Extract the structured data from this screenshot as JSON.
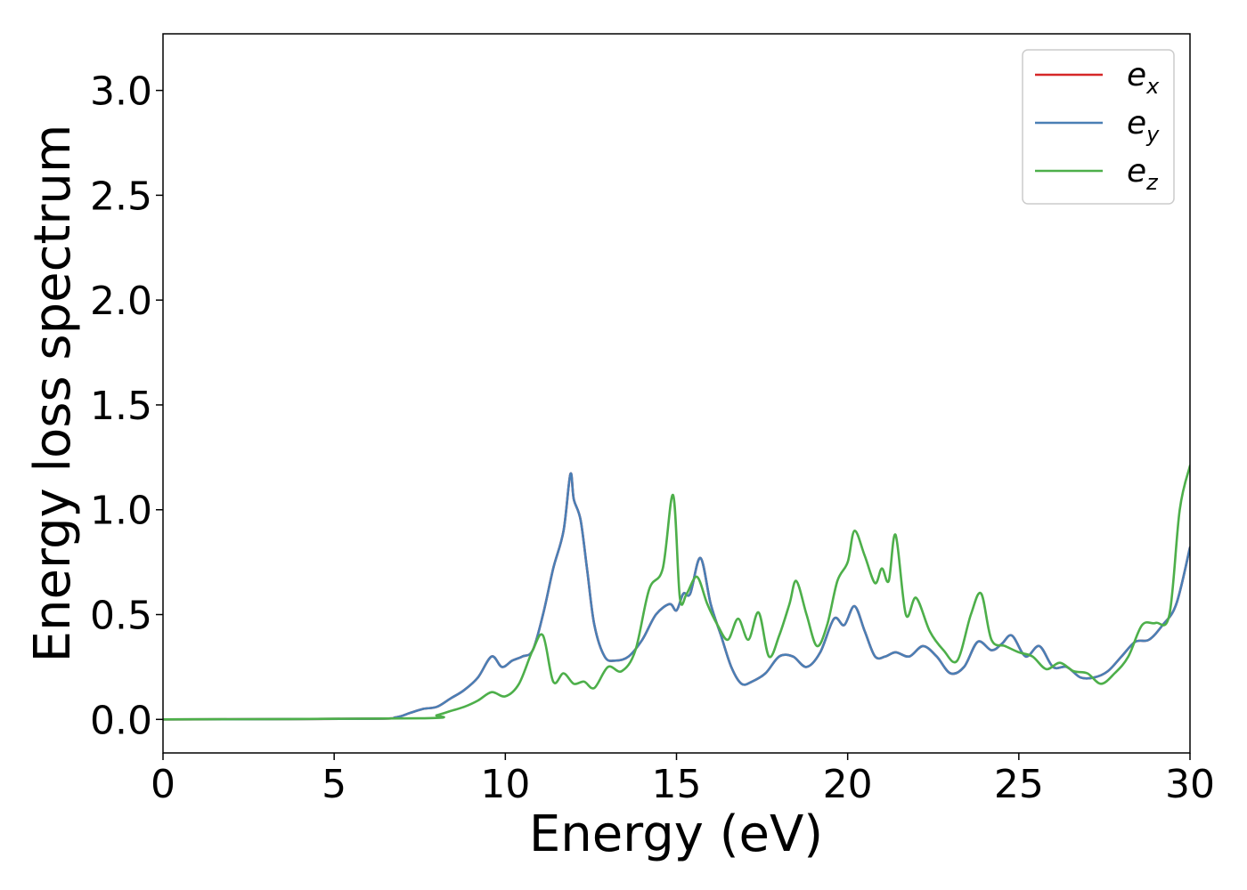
{
  "chart_data": {
    "type": "line",
    "xlabel": "Energy (eV)",
    "ylabel": "Energy loss spectrum",
    "xlim": [
      0,
      30
    ],
    "ylim": [
      -0.16,
      3.27
    ],
    "xticks": [
      "0",
      "5",
      "10",
      "15",
      "20",
      "25",
      "30"
    ],
    "yticks": [
      "0.0",
      "0.5",
      "1.0",
      "1.5",
      "2.0",
      "2.5",
      "3.0"
    ],
    "grid": false,
    "legend_position": "top-right",
    "series": [
      {
        "name": "e_x",
        "label_base": "e",
        "label_sub": "x",
        "color": "#d62728",
        "x": [
          0,
          6,
          6.8,
          7.2,
          7.6,
          8.0,
          8.4,
          8.8,
          9.2,
          9.6,
          9.9,
          10.2,
          10.5,
          10.8,
          11.1,
          11.4,
          11.7,
          11.9,
          12.0,
          12.2,
          12.4,
          12.6,
          12.9,
          13.2,
          13.6,
          14.0,
          14.4,
          14.8,
          15.0,
          15.2,
          15.4,
          15.7,
          16.0,
          16.3,
          16.6,
          16.9,
          17.2,
          17.6,
          18.0,
          18.4,
          18.8,
          19.2,
          19.6,
          19.9,
          20.2,
          20.5,
          20.8,
          21.1,
          21.4,
          21.8,
          22.2,
          22.6,
          23.0,
          23.4,
          23.8,
          24.2,
          24.5,
          24.8,
          25.2,
          25.6,
          26.0,
          26.4,
          26.8,
          27.2,
          27.6,
          28.0,
          28.4,
          28.8,
          29.2,
          29.6,
          30.0
        ],
        "values": [
          0,
          0.003,
          0.01,
          0.03,
          0.05,
          0.06,
          0.1,
          0.14,
          0.2,
          0.3,
          0.25,
          0.28,
          0.3,
          0.33,
          0.5,
          0.72,
          0.9,
          1.17,
          1.05,
          0.95,
          0.7,
          0.45,
          0.3,
          0.28,
          0.3,
          0.38,
          0.5,
          0.55,
          0.52,
          0.6,
          0.6,
          0.77,
          0.55,
          0.4,
          0.25,
          0.17,
          0.18,
          0.22,
          0.3,
          0.3,
          0.25,
          0.32,
          0.48,
          0.45,
          0.54,
          0.42,
          0.3,
          0.3,
          0.32,
          0.3,
          0.35,
          0.3,
          0.22,
          0.25,
          0.37,
          0.33,
          0.36,
          0.4,
          0.3,
          0.35,
          0.25,
          0.25,
          0.2,
          0.2,
          0.23,
          0.3,
          0.37,
          0.38,
          0.45,
          0.55,
          0.82
        ]
      },
      {
        "name": "e_y",
        "label_base": "e",
        "label_sub": "y",
        "color": "#4a7fb5",
        "x": [
          0,
          6,
          6.8,
          7.2,
          7.6,
          8.0,
          8.4,
          8.8,
          9.2,
          9.6,
          9.9,
          10.2,
          10.5,
          10.8,
          11.1,
          11.4,
          11.7,
          11.9,
          12.0,
          12.2,
          12.4,
          12.6,
          12.9,
          13.2,
          13.6,
          14.0,
          14.4,
          14.8,
          15.0,
          15.2,
          15.4,
          15.7,
          16.0,
          16.3,
          16.6,
          16.9,
          17.2,
          17.6,
          18.0,
          18.4,
          18.8,
          19.2,
          19.6,
          19.9,
          20.2,
          20.5,
          20.8,
          21.1,
          21.4,
          21.8,
          22.2,
          22.6,
          23.0,
          23.4,
          23.8,
          24.2,
          24.5,
          24.8,
          25.2,
          25.6,
          26.0,
          26.4,
          26.8,
          27.2,
          27.6,
          28.0,
          28.4,
          28.8,
          29.2,
          29.6,
          30.0
        ],
        "values": [
          0,
          0.003,
          0.01,
          0.03,
          0.05,
          0.06,
          0.1,
          0.14,
          0.2,
          0.3,
          0.25,
          0.28,
          0.3,
          0.33,
          0.5,
          0.72,
          0.9,
          1.17,
          1.05,
          0.95,
          0.7,
          0.45,
          0.3,
          0.28,
          0.3,
          0.38,
          0.5,
          0.55,
          0.52,
          0.6,
          0.6,
          0.77,
          0.55,
          0.4,
          0.25,
          0.17,
          0.18,
          0.22,
          0.3,
          0.3,
          0.25,
          0.32,
          0.48,
          0.45,
          0.54,
          0.42,
          0.3,
          0.3,
          0.32,
          0.3,
          0.35,
          0.3,
          0.22,
          0.25,
          0.37,
          0.33,
          0.36,
          0.4,
          0.3,
          0.35,
          0.25,
          0.25,
          0.2,
          0.2,
          0.23,
          0.3,
          0.37,
          0.38,
          0.45,
          0.55,
          0.82
        ]
      },
      {
        "name": "e_z",
        "label_base": "e",
        "label_sub": "z",
        "color": "#4daf4a",
        "x": [
          0,
          7.5,
          8.0,
          8.4,
          8.8,
          9.2,
          9.6,
          10.0,
          10.4,
          10.8,
          11.1,
          11.4,
          11.7,
          12.0,
          12.3,
          12.6,
          13.0,
          13.4,
          13.8,
          14.2,
          14.6,
          14.9,
          15.1,
          15.3,
          15.6,
          15.9,
          16.2,
          16.5,
          16.8,
          17.1,
          17.4,
          17.7,
          18.0,
          18.3,
          18.5,
          18.8,
          19.1,
          19.4,
          19.7,
          20.0,
          20.2,
          20.5,
          20.8,
          21.0,
          21.2,
          21.4,
          21.7,
          22.0,
          22.4,
          22.8,
          23.2,
          23.6,
          23.9,
          24.2,
          24.6,
          25.0,
          25.4,
          25.8,
          26.2,
          26.6,
          27.0,
          27.4,
          27.8,
          28.2,
          28.6,
          29.0,
          29.4,
          29.7,
          30.0
        ],
        "values": [
          0,
          0.005,
          0.02,
          0.04,
          0.06,
          0.09,
          0.13,
          0.11,
          0.17,
          0.33,
          0.4,
          0.18,
          0.22,
          0.17,
          0.18,
          0.15,
          0.25,
          0.23,
          0.33,
          0.62,
          0.72,
          1.07,
          0.58,
          0.6,
          0.68,
          0.55,
          0.45,
          0.38,
          0.48,
          0.38,
          0.51,
          0.3,
          0.4,
          0.55,
          0.66,
          0.5,
          0.35,
          0.45,
          0.66,
          0.75,
          0.9,
          0.78,
          0.65,
          0.72,
          0.66,
          0.88,
          0.5,
          0.58,
          0.42,
          0.33,
          0.28,
          0.5,
          0.6,
          0.38,
          0.35,
          0.32,
          0.3,
          0.24,
          0.27,
          0.23,
          0.22,
          0.17,
          0.22,
          0.3,
          0.45,
          0.46,
          0.5,
          1.0,
          1.21
        ]
      }
    ]
  }
}
